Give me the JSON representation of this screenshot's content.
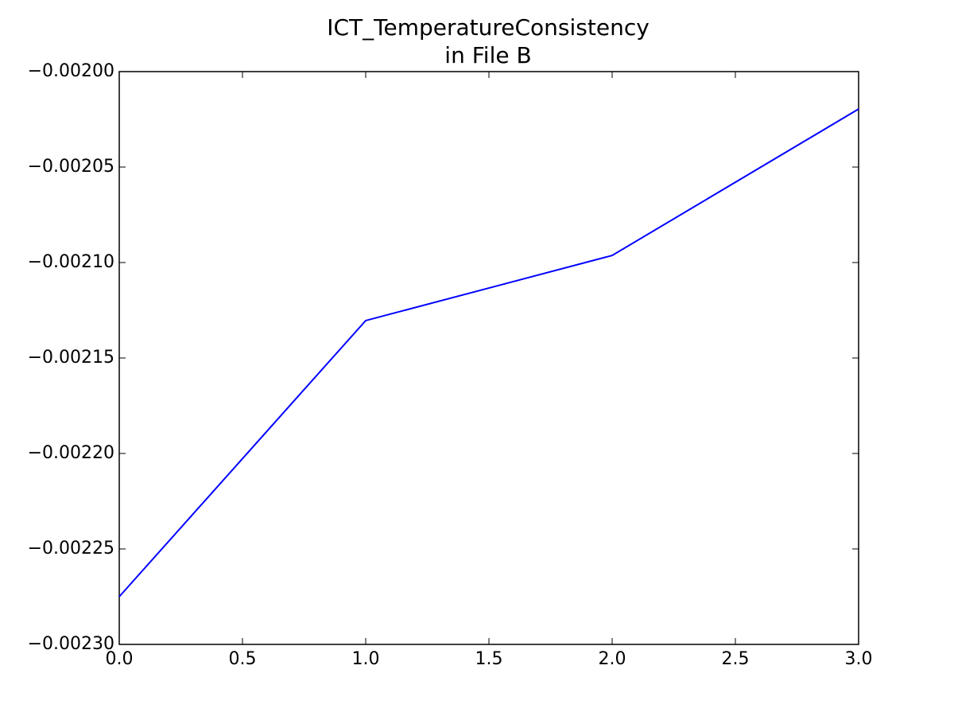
{
  "chart_data": {
    "type": "line",
    "title": "ICT_TemperatureConsistency",
    "subtitle": "in File B",
    "x": [
      0,
      1,
      2,
      3
    ],
    "series": [
      {
        "name": "ICT_TemperatureConsistency",
        "color": "#0000ff",
        "values": [
          -0.002275,
          -0.0021304,
          -0.0020963,
          -0.0020196
        ]
      }
    ],
    "xlim": [
      0,
      3
    ],
    "xticks": [
      {
        "value": 0,
        "label": "0.0"
      },
      0.5,
      {
        "value": 1,
        "label": "1.0"
      },
      1.5,
      {
        "value": 2,
        "label": "2.0"
      },
      2.5,
      {
        "value": 3,
        "label": "3.0"
      }
    ],
    "ylim": [
      -0.0023,
      -0.002
    ],
    "yticks": [
      {
        "value": -0.0023,
        "label": "−0.00230"
      },
      {
        "value": -0.00225,
        "label": "−0.00225"
      },
      {
        "value": -0.0022,
        "label": "−0.00220"
      },
      {
        "value": -0.00215,
        "label": "−0.00215"
      },
      {
        "value": -0.0021,
        "label": "−0.00210"
      },
      {
        "value": -0.00205,
        "label": "−0.00205"
      },
      {
        "value": -0.002,
        "label": "−0.00200"
      }
    ],
    "grid": false
  }
}
